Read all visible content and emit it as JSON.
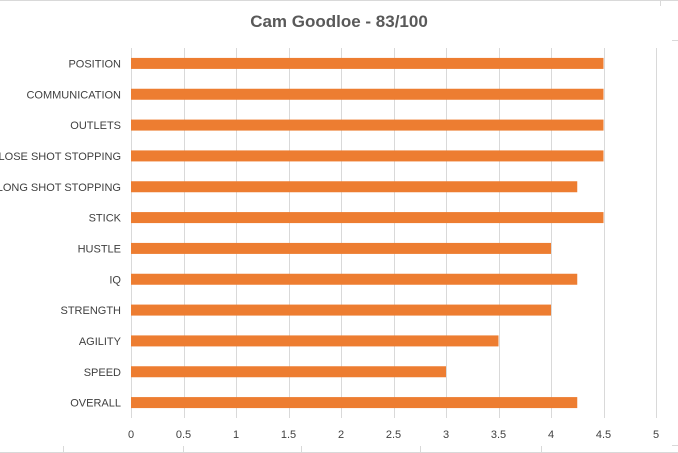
{
  "chart_data": {
    "type": "bar",
    "orientation": "horizontal",
    "title": "Cam Goodloe - 83/100",
    "xlabel": "",
    "ylabel": "",
    "categories": [
      "POSITION",
      "COMMUNICATION",
      "OUTLETS",
      "CLOSE SHOT STOPPING",
      "LONG SHOT STOPPING",
      "STICK",
      "HUSTLE",
      "IQ",
      "STRENGTH",
      "AGILITY",
      "SPEED",
      "OVERALL"
    ],
    "values": [
      4.5,
      4.5,
      4.5,
      4.5,
      4.25,
      4.5,
      4.0,
      4.25,
      4.0,
      3.5,
      3.0,
      4.25
    ],
    "xlim": [
      0,
      5
    ],
    "xticks": [
      "0",
      "0.5",
      "1",
      "1.5",
      "2",
      "2.5",
      "3",
      "3.5",
      "4",
      "4.5",
      "5"
    ],
    "xtick_values": [
      0,
      0.5,
      1,
      1.5,
      2,
      2.5,
      3,
      3.5,
      4,
      4.5,
      5
    ],
    "grid": true,
    "legend": "none",
    "bar_color": "#ed7d31",
    "grid_color": "#d9d9d9"
  }
}
